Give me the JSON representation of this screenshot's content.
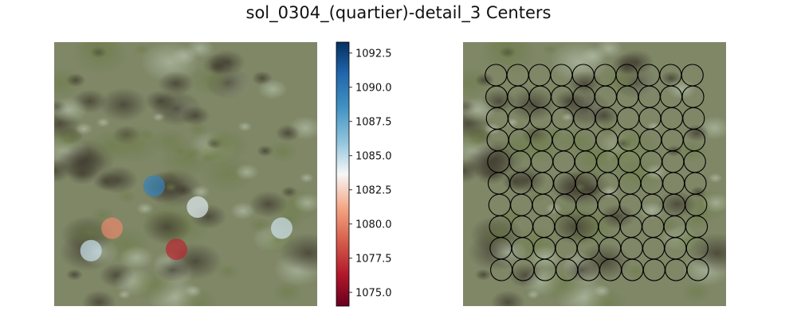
{
  "figure": {
    "title": "sol_0304_(quartier)-detail_3 Centers"
  },
  "chart_data": [
    {
      "type": "scatter",
      "panel": "left",
      "background": "terrain-photo",
      "marker": "filled-circle",
      "colormap": "RdBu",
      "colorbar": {
        "range": [
          1074,
          1093.3
        ],
        "ticks": [
          1075.0,
          1077.5,
          1080.0,
          1082.5,
          1085.0,
          1087.5,
          1090.0,
          1092.5
        ],
        "tick_labels": [
          "1075.0",
          "1077.5",
          "1080.0",
          "1082.5",
          "1085.0",
          "1087.5",
          "1090.0",
          "1092.5"
        ]
      },
      "xlim": [
        0,
        1
      ],
      "ylim": [
        0,
        1
      ],
      "points": [
        {
          "x": 0.38,
          "y": 0.455,
          "value": 1089.3
        },
        {
          "x": 0.545,
          "y": 0.375,
          "value": 1084.2
        },
        {
          "x": 0.22,
          "y": 0.295,
          "value": 1080.2
        },
        {
          "x": 0.865,
          "y": 0.295,
          "value": 1084.6
        },
        {
          "x": 0.14,
          "y": 0.21,
          "value": 1084.7
        },
        {
          "x": 0.465,
          "y": 0.215,
          "value": 1076.8
        }
      ],
      "axes_visible": false
    },
    {
      "type": "scatter",
      "panel": "right",
      "background": "terrain-photo",
      "marker": "open-circle",
      "edge_color": "#000000",
      "grid_shape": [
        10,
        10
      ],
      "grid_origin": [
        0.125,
        0.875
      ],
      "grid_step": [
        0.083,
        0.082
      ],
      "row_shear": 0.0023,
      "axes_visible": false
    }
  ]
}
